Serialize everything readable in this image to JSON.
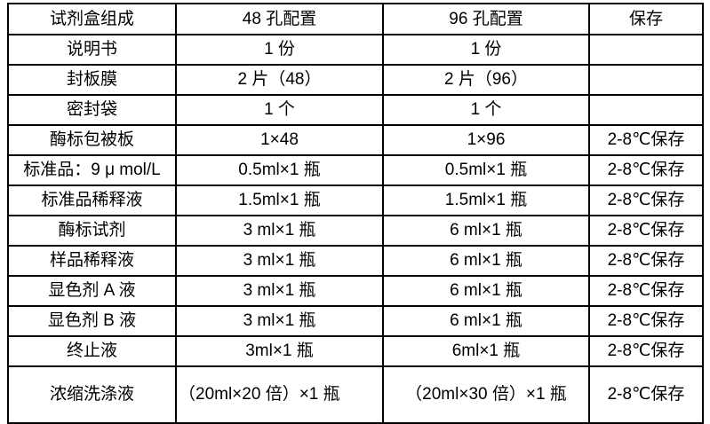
{
  "table": {
    "columns": [
      "试剂盒组成",
      "48 孔配置",
      "96 孔配置",
      "保存"
    ],
    "rows": [
      {
        "name": "说明书",
        "config_48": "1 份",
        "config_96": "1 份",
        "storage": ""
      },
      {
        "name": "封板膜",
        "config_48": "2 片（48）",
        "config_96": "2 片（96）",
        "storage": ""
      },
      {
        "name": "密封袋",
        "config_48": "1 个",
        "config_96": "1 个",
        "storage": ""
      },
      {
        "name": "酶标包被板",
        "config_48": "1×48",
        "config_96": "1×96",
        "storage": "2-8℃保存"
      },
      {
        "name": "标准品：9 μ mol/L",
        "config_48": "0.5ml×1 瓶",
        "config_96": "0.5ml×1 瓶",
        "storage": "2-8℃保存"
      },
      {
        "name": "标准品稀释液",
        "config_48": "1.5ml×1 瓶",
        "config_96": "1.5ml×1 瓶",
        "storage": "2-8℃保存"
      },
      {
        "name": "酶标试剂",
        "config_48": "3 ml×1 瓶",
        "config_96": "6 ml×1 瓶",
        "storage": "2-8℃保存"
      },
      {
        "name": "样品稀释液",
        "config_48": "3 ml×1 瓶",
        "config_96": "6 ml×1 瓶",
        "storage": "2-8℃保存"
      },
      {
        "name": "显色剂 A 液",
        "config_48": "3 ml×1 瓶",
        "config_96": "6 ml×1 瓶",
        "storage": "2-8℃保存"
      },
      {
        "name": "显色剂 B 液",
        "config_48": "3 ml×1 瓶",
        "config_96": "6 ml×1 瓶",
        "storage": "2-8℃保存"
      },
      {
        "name": "终止液",
        "config_48": "3ml×1 瓶",
        "config_96": "6ml×1 瓶",
        "storage": "2-8℃保存"
      },
      {
        "name": "浓缩洗涤液",
        "config_48": "（20ml×20 倍）×1 瓶",
        "config_96": "（20ml×30 倍）×1 瓶",
        "storage": "2-8℃保存"
      }
    ]
  }
}
